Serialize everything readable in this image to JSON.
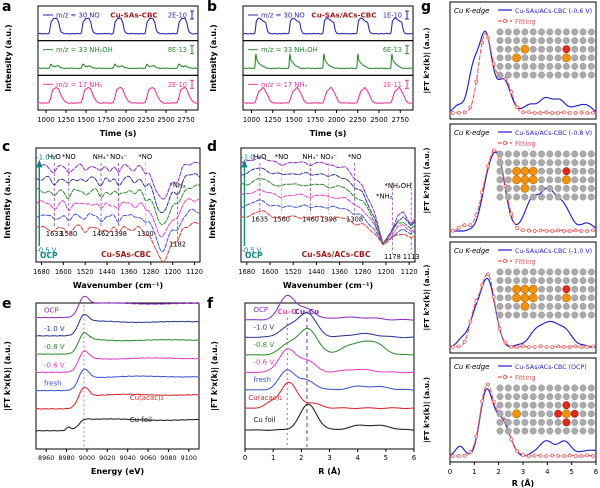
{
  "chart_data": {
    "a": {
      "type": "line",
      "panel_label": "a",
      "title": "Cu-SAs-CBC",
      "title_color": "#9b1c1c",
      "xlabel": "Time (s)",
      "ylabel": "Intensity (a.u.)",
      "xdomain": [
        900,
        2900
      ],
      "xticks": [
        1000,
        1250,
        1500,
        1750,
        2000,
        2250,
        2500,
        2750
      ],
      "pulses": [
        1040,
        1440,
        1840,
        2240,
        2640
      ],
      "traces": [
        {
          "label": "m/z = 30 NO",
          "scale": "2E-10",
          "color": "#2a2aaa",
          "shape": [
            [
              0,
              0
            ],
            [
              25,
              0.78
            ],
            [
              55,
              0.95
            ],
            [
              95,
              1
            ],
            [
              120,
              0.7
            ],
            [
              140,
              0.22
            ],
            [
              160,
              0.05
            ],
            [
              185,
              0
            ]
          ]
        },
        {
          "label": "m/z = 33 NH₂OH",
          "scale": "8E-13",
          "color": "#2e8b2e",
          "shape": [
            [
              0,
              0
            ],
            [
              20,
              0.3
            ],
            [
              55,
              0.1
            ],
            [
              105,
              0.16
            ],
            [
              145,
              0.05
            ],
            [
              185,
              0
            ]
          ]
        },
        {
          "label": "m/z = 17 NH₃",
          "scale": "2E-10",
          "color": "#e8399a",
          "shape": [
            [
              0,
              0
            ],
            [
              45,
              0.85
            ],
            [
              85,
              1
            ],
            [
              120,
              0.88
            ],
            [
              155,
              0.4
            ],
            [
              195,
              0.1
            ],
            [
              225,
              0
            ]
          ]
        }
      ]
    },
    "b": {
      "type": "line",
      "panel_label": "b",
      "title": "Cu-SAs/ACs-CBC",
      "title_color": "#9b1c1c",
      "xlabel": "Time (s)",
      "ylabel": "Intensity (a.u.)",
      "xdomain": [
        900,
        2900
      ],
      "xticks": [
        1000,
        1250,
        1500,
        1750,
        2000,
        2250,
        2500,
        2750
      ],
      "pulses": [
        1040,
        1440,
        1840,
        2240,
        2640
      ],
      "traces": [
        {
          "label": "m/z = 30 NO",
          "scale": "1E-10",
          "color": "#2a2aaa",
          "shape": [
            [
              0,
              0
            ],
            [
              18,
              0.82
            ],
            [
              42,
              1
            ],
            [
              75,
              0.92
            ],
            [
              105,
              0.78
            ],
            [
              128,
              0.7
            ],
            [
              148,
              0.18
            ],
            [
              168,
              0
            ]
          ]
        },
        {
          "label": "m/z = 33 NH₂OH",
          "scale": "6E-13",
          "color": "#2e8b2e",
          "shape": [
            [
              0,
              0
            ],
            [
              10,
              1
            ],
            [
              25,
              0.5
            ],
            [
              55,
              0.28
            ],
            [
              95,
              0.12
            ],
            [
              135,
              0.02
            ],
            [
              160,
              0
            ]
          ]
        },
        {
          "label": "m/z = 17 NH₃",
          "scale": "1E-11",
          "color": "#e8399a",
          "shape": [
            [
              0,
              0
            ],
            [
              45,
              0.72
            ],
            [
              95,
              1
            ],
            [
              135,
              0.68
            ],
            [
              175,
              0.18
            ],
            [
              205,
              0
            ]
          ]
        }
      ]
    },
    "c": {
      "type": "line",
      "panel_label": "c",
      "title": "Cu-SAs-CBC",
      "title_color": "#9b1c1c",
      "xlabel": "Wavenumber (cm⁻¹)",
      "ylabel": "Intensity (a.u.)",
      "xdomain": [
        1700,
        1100
      ],
      "xticks": [
        1680,
        1600,
        1520,
        1440,
        1360,
        1280,
        1200,
        1120
      ],
      "species_markers": [
        {
          "x": 1633,
          "label": "H₂O",
          "num": "1633",
          "line_color": "#a94fc4"
        },
        {
          "x": 1580,
          "label": "*NO",
          "num": "1580",
          "line_color": "#a94fc4"
        },
        {
          "x": 1462,
          "label": "NH₄⁺",
          "num": "1462",
          "line_color": "#a94fc4"
        },
        {
          "x": 1398,
          "label": "NO₃⁻",
          "num": "1398",
          "line_color": "#a94fc4"
        },
        {
          "x": 1300,
          "label": "*NO",
          "num": "1300",
          "line_color": "#f2a0d8"
        }
      ],
      "nh2_marker": {
        "x": 1182,
        "label": "*NH₂",
        "num": "1182",
        "line_color": "#a94fc4"
      },
      "arrow_top_label": "-1.0 V",
      "arrow_bottom_label": "-0.5 V",
      "ocp_label": "OCP",
      "arrow_color": "#0c8585",
      "trace_colors_top_to_bottom": [
        "#8a2fc0",
        "#2b3a8f",
        "#2e8b2e",
        "#e040c8",
        "#3a56cc",
        "#d04038"
      ]
    },
    "d": {
      "type": "line",
      "panel_label": "d",
      "title": "Cu-SAs/ACs-CBC",
      "title_color": "#9b1c1c",
      "xlabel": "Wavenumber (cm⁻¹)",
      "ylabel": "Intensity (a.u.)",
      "xdomain": [
        1700,
        1100
      ],
      "xticks": [
        1680,
        1600,
        1520,
        1440,
        1360,
        1280,
        1200,
        1120
      ],
      "species_markers": [
        {
          "x": 1635,
          "label": "H₂O",
          "num": "1635",
          "line_color": "#a94fc4"
        },
        {
          "x": 1560,
          "label": "*NO",
          "num": "1560",
          "line_color": "#f2a0d8"
        },
        {
          "x": 1460,
          "label": "NH₄⁺",
          "num": "1460",
          "line_color": "#a94fc4"
        },
        {
          "x": 1398,
          "label": "NO₃⁻",
          "num": "1398",
          "line_color": "#f2a0d8"
        },
        {
          "x": 1308,
          "label": "*NO",
          "num": "1308",
          "line_color": "#a94fc4"
        }
      ],
      "right_markers": [
        {
          "x": 1178,
          "label": "*NH₂",
          "num": "1178",
          "line_color": "#a94fc4"
        },
        {
          "x": 1113,
          "label": "*NH₂OH",
          "num": "1113",
          "line_color": "#a94fc4"
        }
      ],
      "arrow_top_label": "-1.0 V",
      "arrow_bottom_label": "-0.5 V",
      "ocp_label": "OCP",
      "arrow_color": "#0c8585",
      "trace_colors_top_to_bottom": [
        "#8a2fc0",
        "#2b3a8f",
        "#2e8b2e",
        "#e040c8",
        "#3a56cc",
        "#d04038"
      ]
    },
    "e": {
      "type": "line",
      "panel_label": "e",
      "xlabel": "Energy (eV)",
      "ylabel": "|FT k³x(k)| (a.u.)",
      "xdomain": [
        8950,
        9110
      ],
      "xticks": [
        8960,
        8980,
        9000,
        9020,
        9040,
        9060,
        9080,
        9100
      ],
      "edge_line_x": 8997,
      "edge_line_color": "#ea6ad0",
      "traces": [
        {
          "label": "OCP",
          "color": "#8a2fc0",
          "side": "left"
        },
        {
          "label": "-1.0 V",
          "color": "#2b3a8f",
          "side": "left"
        },
        {
          "label": "-0.8 V",
          "color": "#2e8b2e",
          "side": "left"
        },
        {
          "label": "-0.6 V",
          "color": "#e040c8",
          "side": "left"
        },
        {
          "label": "fresh",
          "color": "#3a56cc",
          "side": "left"
        },
        {
          "label": "Cu(acac)₂",
          "color": "#d02a2a",
          "side": "right"
        },
        {
          "label": "Cu foil",
          "color": "#1a1a1a",
          "side": "right",
          "foil": true
        }
      ]
    },
    "f": {
      "type": "line",
      "panel_label": "f",
      "xlabel": "R (Å)",
      "ylabel": "|FT k³x(k)| (a.u.)",
      "xdomain": [
        0,
        6
      ],
      "xticks": [
        0,
        1,
        2,
        3,
        4,
        5,
        6
      ],
      "ref_lines": [
        {
          "x": 1.5,
          "label": "Cu–O",
          "color": "#e84fa0",
          "dash": "2,3"
        },
        {
          "x": 2.2,
          "label": "Cu–Cu",
          "color": "#7a2fa0",
          "dash": "4,3"
        }
      ],
      "traces": [
        {
          "label": "OCP",
          "color": "#8a2fc0",
          "peaks": [
            [
              1.5,
              0.28,
              0.8
            ],
            [
              2.2,
              0.3,
              0.35
            ],
            [
              3.5,
              0.4,
              0.08
            ],
            [
              4.4,
              0.4,
              0.06
            ]
          ]
        },
        {
          "label": "-1.0 V",
          "color": "#2b3a8f",
          "peaks": [
            [
              1.5,
              0.3,
              0.3
            ],
            [
              2.2,
              0.33,
              0.8
            ],
            [
              4.2,
              0.5,
              0.12
            ]
          ]
        },
        {
          "label": "-0.8 V",
          "color": "#2e8b2e",
          "peaks": [
            [
              1.55,
              0.3,
              0.35
            ],
            [
              2.25,
              0.33,
              0.85
            ],
            [
              3.6,
              0.28,
              0.25
            ],
            [
              4.15,
              0.28,
              0.3
            ],
            [
              4.65,
              0.33,
              0.35
            ]
          ]
        },
        {
          "label": "-0.6 V",
          "color": "#e040c8",
          "peaks": [
            [
              1.5,
              0.3,
              0.75
            ],
            [
              2.2,
              0.3,
              0.38
            ],
            [
              4.0,
              0.5,
              0.1
            ]
          ]
        },
        {
          "label": "fresh",
          "color": "#3a56cc",
          "peaks": [
            [
              1.5,
              0.28,
              0.65
            ],
            [
              2.2,
              0.3,
              0.3
            ],
            [
              4.1,
              0.4,
              0.12
            ],
            [
              4.9,
              0.3,
              0.08
            ]
          ]
        },
        {
          "label": "Cu(acac)₂",
          "color": "#d02a2a",
          "peaks": [
            [
              0.9,
              0.2,
              0.15
            ],
            [
              1.55,
              0.3,
              0.85
            ],
            [
              2.4,
              0.3,
              0.15
            ]
          ]
        },
        {
          "label": "Cu foil",
          "color": "#1a1a1a",
          "peaks": [
            [
              2.25,
              0.3,
              0.85
            ],
            [
              4.1,
              0.4,
              0.15
            ],
            [
              4.9,
              0.35,
              0.12
            ]
          ]
        }
      ]
    },
    "g": {
      "type": "line",
      "panel_label": "g",
      "ylabel": "|FT k³x(k)| (a.u.)",
      "xlabel": "R (Å)",
      "xdomain": [
        0,
        6
      ],
      "xticks": [
        0,
        1,
        2,
        3,
        4,
        5,
        6
      ],
      "edge_label": "Cu K-edge",
      "fit_label": "Fitting",
      "data_color": "#1f1fc8",
      "fit_color": "#e85a5a",
      "atom_colors": {
        "c": "#ababab",
        "cu": "#f2930f",
        "o": "#e02a1a"
      },
      "subpanels": [
        {
          "data_label": "Cu-SAs/ACs-CBC (-0.6 V)",
          "blue_peaks": [
            [
              0.35,
              0.2,
              0.1
            ],
            [
              0.95,
              0.22,
              0.5
            ],
            [
              1.45,
              0.26,
              1.0
            ],
            [
              2.2,
              0.3,
              0.42
            ],
            [
              3.3,
              0.22,
              0.12
            ],
            [
              3.95,
              0.25,
              0.2
            ],
            [
              4.55,
              0.25,
              0.16
            ],
            [
              5.45,
              0.3,
              0.12
            ]
          ],
          "fit_peaks": [
            [
              1.45,
              0.27,
              1.02
            ],
            [
              2.2,
              0.3,
              0.46
            ]
          ],
          "inset": {
            "cu": [
              [
                3,
                2
              ],
              [
                2,
                3
              ],
              [
                8,
                3
              ]
            ],
            "o": [
              [
                8,
                2
              ]
            ]
          }
        },
        {
          "data_label": "Cu-SAs/ACs-CBC (-0.8 V)",
          "blue_peaks": [
            [
              1.5,
              0.28,
              0.4
            ],
            [
              1.95,
              0.32,
              0.95
            ],
            [
              3.35,
              0.28,
              0.42
            ],
            [
              3.98,
              0.28,
              0.52
            ],
            [
              4.6,
              0.3,
              0.38
            ],
            [
              5.6,
              0.35,
              0.1
            ]
          ],
          "fit_peaks": [
            [
              0.6,
              0.2,
              0.08
            ],
            [
              1.45,
              0.28,
              0.42
            ],
            [
              1.95,
              0.33,
              1.0
            ]
          ],
          "inset": {
            "cu": [
              [
                2,
                2
              ],
              [
                3,
                2
              ],
              [
                4,
                2
              ],
              [
                2,
                3
              ],
              [
                3,
                3
              ],
              [
                4,
                3
              ],
              [
                3,
                4
              ],
              [
                8,
                3
              ]
            ],
            "o": [
              [
                8,
                2
              ]
            ]
          }
        },
        {
          "data_label": "Cu-SAs/ACs-CBC (-1.0 V)",
          "blue_peaks": [
            [
              0.5,
              0.2,
              0.12
            ],
            [
              1.0,
              0.22,
              0.35
            ],
            [
              1.55,
              0.3,
              0.95
            ],
            [
              3.8,
              0.45,
              0.3
            ],
            [
              4.6,
              0.4,
              0.24
            ]
          ],
          "fit_peaks": [
            [
              1.0,
              0.22,
              0.38
            ],
            [
              1.55,
              0.3,
              1.0
            ]
          ],
          "inset": {
            "cu": [
              [
                2,
                2
              ],
              [
                3,
                2
              ],
              [
                4,
                2
              ],
              [
                2,
                3
              ],
              [
                3,
                3
              ],
              [
                4,
                3
              ],
              [
                3,
                4
              ],
              [
                8,
                3
              ]
            ],
            "o": [
              [
                8,
                2
              ]
            ]
          }
        },
        {
          "data_label": "Cu-SAs/ACs-CBC (OCP)",
          "blue_peaks": [
            [
              0.4,
              0.18,
              0.15
            ],
            [
              1.5,
              0.26,
              1.0
            ],
            [
              2.15,
              0.3,
              0.55
            ],
            [
              3.9,
              0.3,
              0.22
            ],
            [
              4.7,
              0.32,
              0.22
            ],
            [
              5.8,
              0.3,
              0.1
            ]
          ],
          "fit_peaks": [
            [
              1.5,
              0.27,
              1.05
            ],
            [
              2.15,
              0.3,
              0.58
            ]
          ],
          "inset": {
            "cu": [
              [
                2,
                3
              ],
              [
                8,
                3
              ]
            ],
            "o": [
              [
                8,
                2
              ],
              [
                8,
                4
              ],
              [
                7,
                3
              ],
              [
                9,
                3
              ]
            ]
          }
        }
      ]
    }
  }
}
